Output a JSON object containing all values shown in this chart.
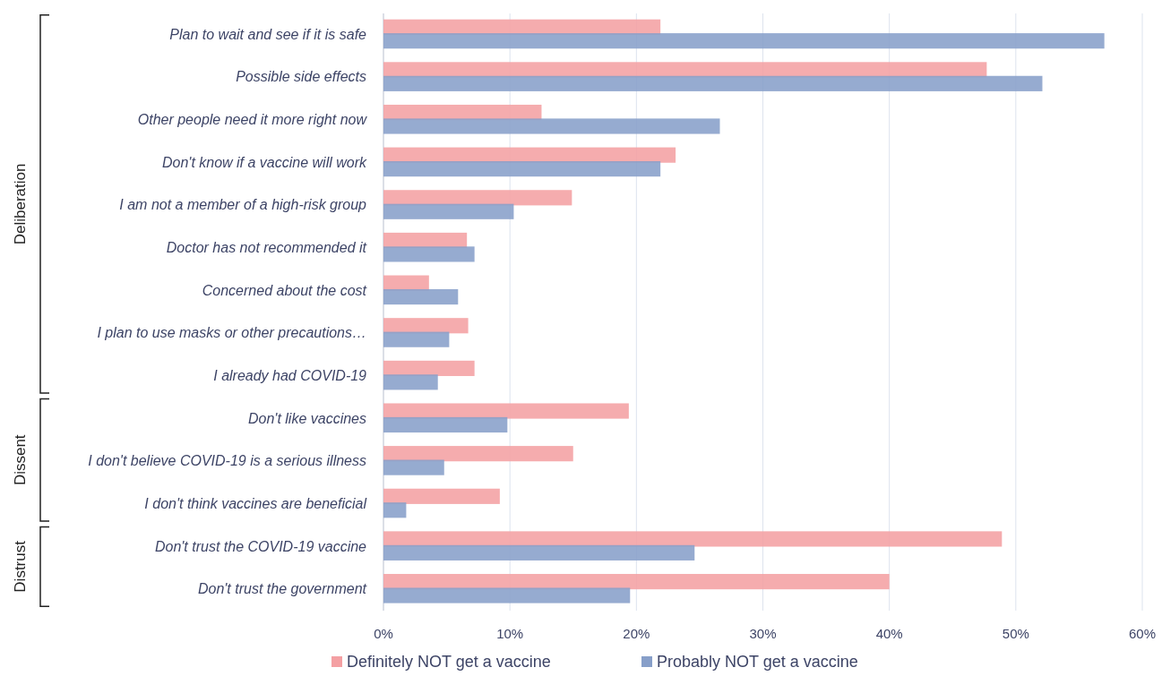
{
  "chart_data": {
    "type": "bar",
    "orientation": "horizontal",
    "categories": [
      "Plan to wait and see if it is safe",
      "Possible side effects",
      "Other people need it more right now",
      "Don't know if a vaccine will work ",
      "I am not a member of a high-risk group",
      "Doctor has not recommended it",
      "Concerned about the cost",
      "I plan to use masks or other precautions…",
      "I already had COVID-19",
      "Don't like vaccines",
      "I don't believe COVID-19 is a serious illness",
      "I don't think vaccines are beneficial",
      "Don't trust the COVID-19 vaccine",
      "Don't trust the government"
    ],
    "series": [
      {
        "name": "Definitely NOT get a vaccine",
        "color": "#f4a0a3",
        "values": [
          21.9,
          47.7,
          12.5,
          23.1,
          14.9,
          6.6,
          3.6,
          6.7,
          7.2,
          19.4,
          15.0,
          9.2,
          48.9,
          40.0
        ]
      },
      {
        "name": "Probably NOT get a vaccine",
        "color": "#879fc9",
        "values": [
          57.0,
          52.1,
          26.6,
          21.9,
          10.3,
          7.2,
          5.9,
          5.2,
          4.3,
          9.8,
          4.8,
          1.8,
          24.6,
          19.5
        ]
      }
    ],
    "xlim": [
      0,
      60
    ],
    "xticks": [
      {
        "value": 0,
        "label": "0%"
      },
      {
        "value": 10,
        "label": "10%"
      },
      {
        "value": 20,
        "label": "20%"
      },
      {
        "value": 30,
        "label": "30%"
      },
      {
        "value": 40,
        "label": "40%"
      },
      {
        "value": 50,
        "label": "50%"
      },
      {
        "value": 60,
        "label": "60%"
      }
    ],
    "grid": "x",
    "legend": "bottom",
    "annotations": [
      "Deliberation",
      "Dissent",
      "Distrust"
    ]
  }
}
